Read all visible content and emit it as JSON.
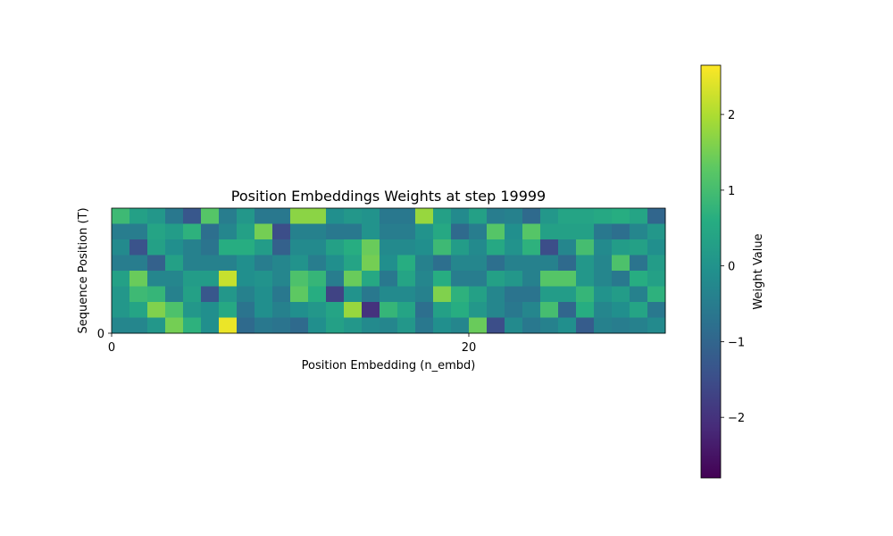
{
  "chart_data": {
    "type": "heatmap",
    "title": "Position Embeddings Weights at step 19999",
    "xlabel": "Position Embedding (n_embd)",
    "ylabel": "Sequence Position (T)",
    "x_ticks": [
      0,
      20
    ],
    "y_ticks": [
      0
    ],
    "colorbar": {
      "label": "Weight Value",
      "vmin": -2.8,
      "vmax": 2.65,
      "ticks": [
        -2,
        -1,
        0,
        1,
        2
      ],
      "colormap": "viridis"
    },
    "n_rows": 8,
    "n_cols": 31,
    "values": [
      [
        0.9,
        0.3,
        0.1,
        -0.6,
        -1.3,
        1.2,
        -0.5,
        0.1,
        -0.6,
        -0.6,
        1.7,
        1.7,
        -0.1,
        0.1,
        0.0,
        -0.6,
        -0.6,
        1.8,
        0.3,
        -0.2,
        0.3,
        -0.5,
        -0.4,
        -0.9,
        0.1,
        0.4,
        0.4,
        0.5,
        0.6,
        0.4,
        -1.0
      ],
      [
        -0.5,
        -0.5,
        0.4,
        0.2,
        0.7,
        -0.8,
        -0.3,
        0.3,
        1.5,
        -1.5,
        -0.4,
        -0.4,
        -0.6,
        -0.6,
        0.0,
        -0.5,
        -0.5,
        0.0,
        0.5,
        -0.9,
        -0.5,
        1.2,
        -0.1,
        1.2,
        0.3,
        0.3,
        0.3,
        -0.6,
        -0.8,
        -0.3,
        0.1
      ],
      [
        -0.2,
        -1.4,
        0.3,
        -0.1,
        -0.4,
        -0.7,
        0.6,
        0.6,
        0.2,
        -1.1,
        -0.2,
        -0.2,
        0.3,
        0.6,
        1.4,
        -0.2,
        -0.2,
        -0.1,
        0.9,
        0.2,
        -0.2,
        0.5,
        0.0,
        0.7,
        -1.5,
        -0.3,
        1.0,
        -0.2,
        0.2,
        0.3,
        -0.1
      ],
      [
        -0.5,
        -0.5,
        -1.1,
        0.3,
        -0.4,
        -0.4,
        -0.4,
        -0.1,
        -0.5,
        -0.3,
        0.0,
        -0.5,
        -0.1,
        0.4,
        1.5,
        -0.1,
        0.6,
        -0.4,
        -0.8,
        -0.3,
        -0.3,
        -0.8,
        -0.4,
        -0.4,
        -0.4,
        -0.9,
        0.1,
        -0.3,
        1.1,
        -0.7,
        0.2
      ],
      [
        0.3,
        1.4,
        -0.3,
        -0.3,
        0.2,
        0.2,
        2.2,
        -0.1,
        0.0,
        -0.3,
        1.1,
        0.8,
        -0.5,
        1.4,
        0.5,
        -0.6,
        0.4,
        -0.3,
        0.6,
        -0.5,
        -0.5,
        0.3,
        0.1,
        -0.4,
        1.2,
        1.2,
        0.1,
        -0.3,
        -0.6,
        0.6,
        0.3
      ],
      [
        0.1,
        0.9,
        0.8,
        -0.4,
        0.3,
        -1.3,
        0.1,
        -0.4,
        -0.1,
        -0.6,
        1.3,
        0.6,
        -1.7,
        0.0,
        -0.6,
        -0.2,
        -0.2,
        -0.4,
        1.6,
        0.7,
        0.3,
        -0.3,
        -0.7,
        -0.7,
        0.2,
        0.2,
        0.8,
        0.0,
        0.2,
        -0.4,
        0.7
      ],
      [
        0.1,
        0.4,
        1.6,
        1.1,
        0.1,
        -0.1,
        0.5,
        -0.7,
        -0.1,
        -0.4,
        -0.1,
        0.1,
        0.4,
        1.8,
        -2.0,
        0.8,
        0.4,
        -0.8,
        0.3,
        0.6,
        0.1,
        -0.3,
        -0.6,
        -0.3,
        1.0,
        -1.0,
        0.6,
        -0.3,
        -0.1,
        0.4,
        -0.6
      ],
      [
        -0.3,
        -0.3,
        0.1,
        1.5,
        0.7,
        -0.1,
        2.5,
        -0.9,
        -0.6,
        -0.7,
        -0.9,
        -0.1,
        0.3,
        0.1,
        -0.2,
        -0.3,
        0.1,
        -0.6,
        -0.1,
        -0.3,
        1.4,
        -1.5,
        -0.2,
        -0.6,
        -0.4,
        -0.1,
        -1.2,
        -0.4,
        -0.5,
        -0.4,
        -0.2
      ]
    ]
  }
}
